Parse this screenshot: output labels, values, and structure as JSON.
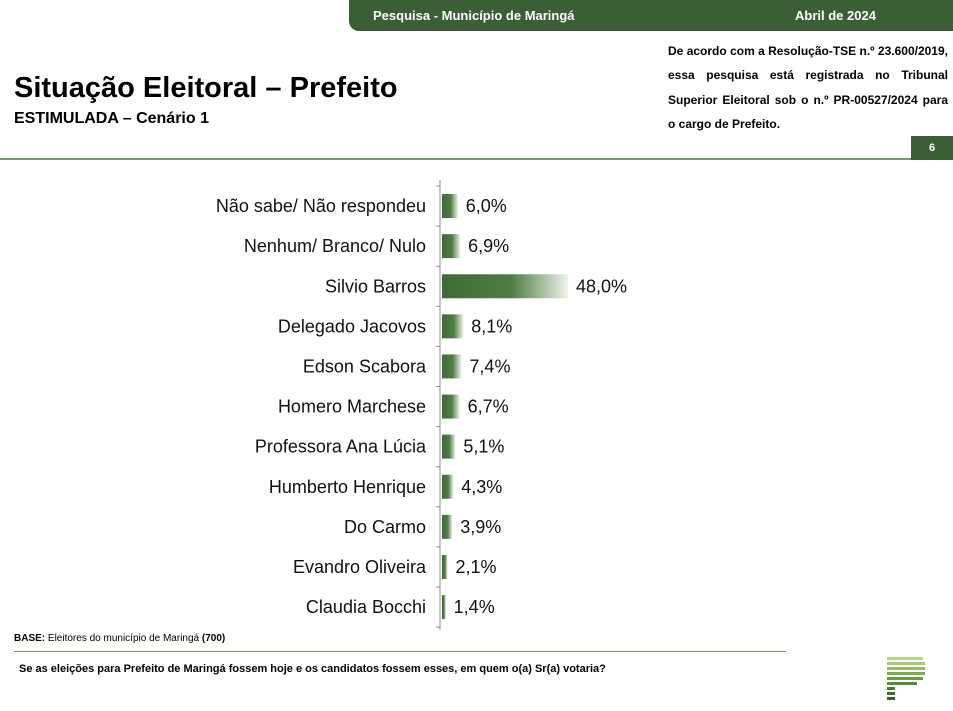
{
  "header": {
    "survey": "Pesquisa - Município de Maringá",
    "date": "Abril de 2024",
    "page_number": "6"
  },
  "title": "Situação Eleitoral – Prefeito",
  "subtitle": "ESTIMULADA – Cenário 1",
  "registration_note": "De acordo com a Resolução-TSE n.º 23.600/2019, essa pesquisa está registrada no Tribunal Superior Eleitoral sob o n.º PR-00527/2024 para o cargo de Prefeito.",
  "footer": {
    "base_label": "BASE:",
    "base_text": "Eleitores do município de Maringá",
    "base_count": "(700)",
    "question": "Se as eleições para Prefeito de Maringá fossem hoje e os candidatos fossem esses, em quem o(a) Sr(a) votaria?"
  },
  "colors": {
    "brand_green": "#3b5e37",
    "bar_dark": "#3e6a35",
    "bar_light": "#eef3ea"
  },
  "chart_data": {
    "type": "bar",
    "orientation": "horizontal",
    "categories": [
      "Não sabe/ Não respondeu",
      "Nenhum/ Branco/ Nulo",
      "Silvio Barros",
      "Delegado Jacovos",
      "Edson Scabora",
      "Homero Marchese",
      "Professora Ana Lúcia",
      "Humberto Henrique",
      "Do Carmo",
      "Evandro Oliveira",
      "Claudia Bocchi"
    ],
    "values": [
      6.0,
      6.9,
      48.0,
      8.1,
      7.4,
      6.7,
      5.1,
      4.3,
      3.9,
      2.1,
      1.4
    ],
    "value_labels": [
      "6,0%",
      "6,9%",
      "48,0%",
      "8,1%",
      "7,4%",
      "6,7%",
      "5,1%",
      "4,3%",
      "3,9%",
      "2,1%",
      "1,4%"
    ],
    "xlim": [
      0,
      100
    ],
    "grid": false,
    "legend": "none"
  }
}
